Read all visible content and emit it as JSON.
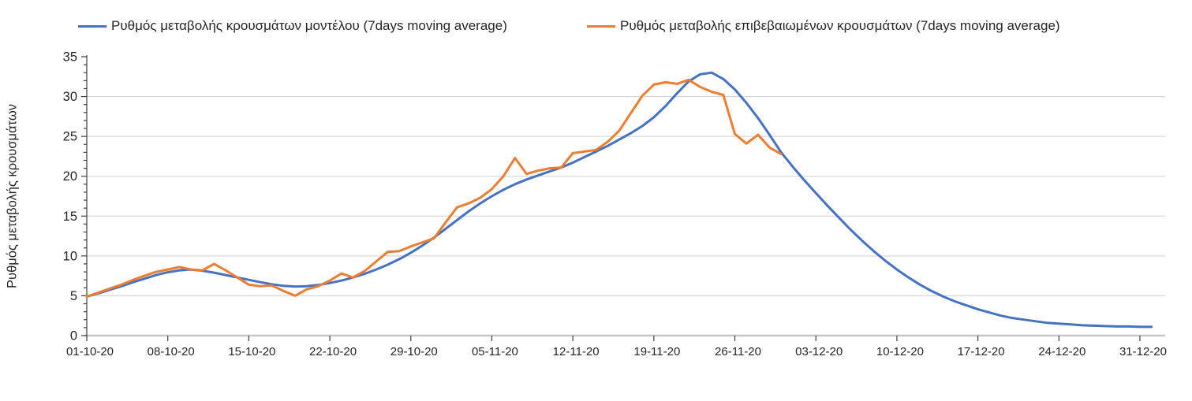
{
  "legend": {
    "model_label": "Ρυθμός μεταβολής κρουσμάτων μοντέλου (7days moving average)",
    "confirmed_label": "Ρυθμός μεταβολής επιβεβαιωμένων κρουσμάτων (7days moving average)"
  },
  "colors": {
    "model_line": "#4472C4",
    "confirmed_line": "#ED7D31",
    "gridline": "#D9D9D9",
    "x_axis_line": "#C6C6C6",
    "axis_tick": "#404040",
    "text": "#262626"
  },
  "chart_data": {
    "type": "line",
    "title": "",
    "xlabel": "",
    "ylabel": "Ρυθμός μεταβολής κρουσμάτων",
    "ylim": [
      0,
      35
    ],
    "y_major_ticks": [
      0,
      5,
      10,
      15,
      20,
      25,
      30,
      35
    ],
    "y_minor_tick_step": 1,
    "grid": "horizontal, light gray, every 5 units",
    "legend_position": "top",
    "x_unit": "days, one value per day starting 01-10-20",
    "x_tick_labels": [
      "01-10-20",
      "08-10-20",
      "15-10-20",
      "22-10-20",
      "29-10-20",
      "05-11-20",
      "12-11-20",
      "19-11-20",
      "26-11-20",
      "03-12-20",
      "10-12-20",
      "17-12-20",
      "24-12-20",
      "31-12-20"
    ],
    "x_tick_days": [
      0,
      7,
      14,
      21,
      28,
      35,
      42,
      49,
      56,
      63,
      70,
      77,
      84,
      91
    ],
    "series": [
      {
        "name": "Ρυθμός μεταβολής κρουσμάτων μοντέλου (7days moving average)",
        "color": "#4472C4",
        "start_day": 0,
        "values": [
          4.9,
          5.3,
          5.75,
          6.2,
          6.7,
          7.15,
          7.6,
          7.95,
          8.2,
          8.3,
          8.15,
          7.9,
          7.6,
          7.3,
          7.0,
          6.7,
          6.45,
          6.25,
          6.15,
          6.2,
          6.35,
          6.6,
          6.9,
          7.3,
          7.75,
          8.3,
          8.9,
          9.6,
          10.4,
          11.3,
          12.3,
          13.4,
          14.5,
          15.6,
          16.6,
          17.5,
          18.3,
          19.0,
          19.6,
          20.1,
          20.6,
          21.1,
          21.7,
          22.4,
          23.1,
          23.8,
          24.6,
          25.4,
          26.3,
          27.4,
          28.8,
          30.4,
          31.9,
          32.8,
          33.0,
          32.2,
          30.9,
          29.2,
          27.3,
          25.2,
          23.0,
          21.2,
          19.5,
          17.9,
          16.3,
          14.8,
          13.3,
          11.9,
          10.6,
          9.4,
          8.3,
          7.3,
          6.4,
          5.6,
          4.9,
          4.3,
          3.8,
          3.3,
          2.9,
          2.5,
          2.2,
          2.0,
          1.8,
          1.6,
          1.5,
          1.4,
          1.3,
          1.25,
          1.2,
          1.15,
          1.15,
          1.1,
          1.1
        ]
      },
      {
        "name": "Ρυθμός μεταβολής επιβεβαιωμένων κρουσμάτων (7days moving average)",
        "color": "#ED7D31",
        "start_day": 0,
        "values": [
          4.9,
          5.4,
          5.9,
          6.4,
          7.0,
          7.5,
          8.0,
          8.3,
          8.6,
          8.3,
          8.2,
          9.0,
          8.2,
          7.3,
          6.4,
          6.2,
          6.3,
          5.6,
          5.0,
          5.8,
          6.2,
          6.9,
          7.8,
          7.3,
          8.1,
          9.3,
          10.5,
          10.6,
          11.2,
          11.7,
          12.2,
          14.2,
          16.1,
          16.6,
          17.3,
          18.4,
          20.0,
          22.3,
          20.3,
          20.7,
          21.0,
          21.1,
          22.9,
          23.1,
          23.3,
          24.3,
          25.7,
          27.9,
          30.1,
          31.5,
          31.8,
          31.6,
          32.1,
          31.2,
          30.6,
          30.2,
          25.3,
          24.1,
          25.2,
          23.6,
          22.8
        ]
      }
    ]
  }
}
